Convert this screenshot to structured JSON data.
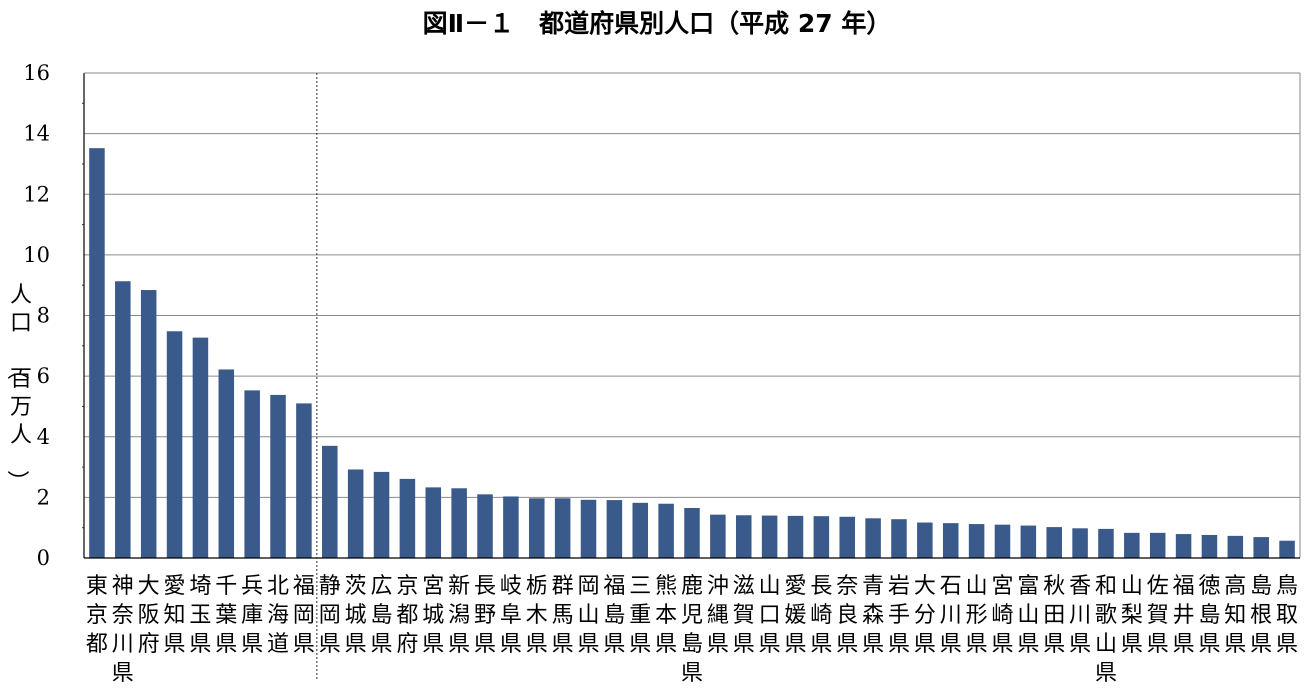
{
  "chart_data": {
    "type": "bar",
    "title": "図Ⅱ－１　都道府県別人口（平成 27 年）",
    "ylabel": "人口（百万人）",
    "xlabel": "",
    "ylim": [
      0,
      16
    ],
    "yticks": [
      "0",
      "2",
      "4",
      "6",
      "8",
      "10",
      "12",
      "14",
      "16"
    ],
    "grid": true,
    "legend": "none",
    "bar_color": "#3a5a8c",
    "divider_after_category": "福岡県",
    "categories": [
      "東京都",
      "神奈川県",
      "大阪府",
      "愛知県",
      "埼玉県",
      "千葉県",
      "兵庫県",
      "北海道",
      "福岡県",
      "静岡県",
      "茨城県",
      "広島県",
      "京都府",
      "宮城県",
      "新潟県",
      "長野県",
      "岐阜県",
      "栃木県",
      "群馬県",
      "岡山県",
      "福島県",
      "三重県",
      "熊本県",
      "鹿児島県",
      "沖縄県",
      "滋賀県",
      "山口県",
      "愛媛県",
      "長崎県",
      "奈良県",
      "青森県",
      "岩手県",
      "大分県",
      "石川県",
      "山形県",
      "宮崎県",
      "富山県",
      "秋田県",
      "香川県",
      "和歌山県",
      "山梨県",
      "佐賀県",
      "福井県",
      "徳島県",
      "高知県",
      "島根県",
      "鳥取県"
    ],
    "values": [
      13.52,
      9.13,
      8.84,
      7.48,
      7.27,
      6.22,
      5.53,
      5.38,
      5.1,
      3.7,
      2.92,
      2.84,
      2.61,
      2.33,
      2.3,
      2.1,
      2.03,
      1.97,
      1.97,
      1.92,
      1.91,
      1.82,
      1.79,
      1.65,
      1.43,
      1.41,
      1.4,
      1.39,
      1.38,
      1.36,
      1.31,
      1.28,
      1.17,
      1.15,
      1.12,
      1.1,
      1.07,
      1.02,
      0.98,
      0.96,
      0.83,
      0.83,
      0.79,
      0.76,
      0.73,
      0.69,
      0.57
    ]
  }
}
